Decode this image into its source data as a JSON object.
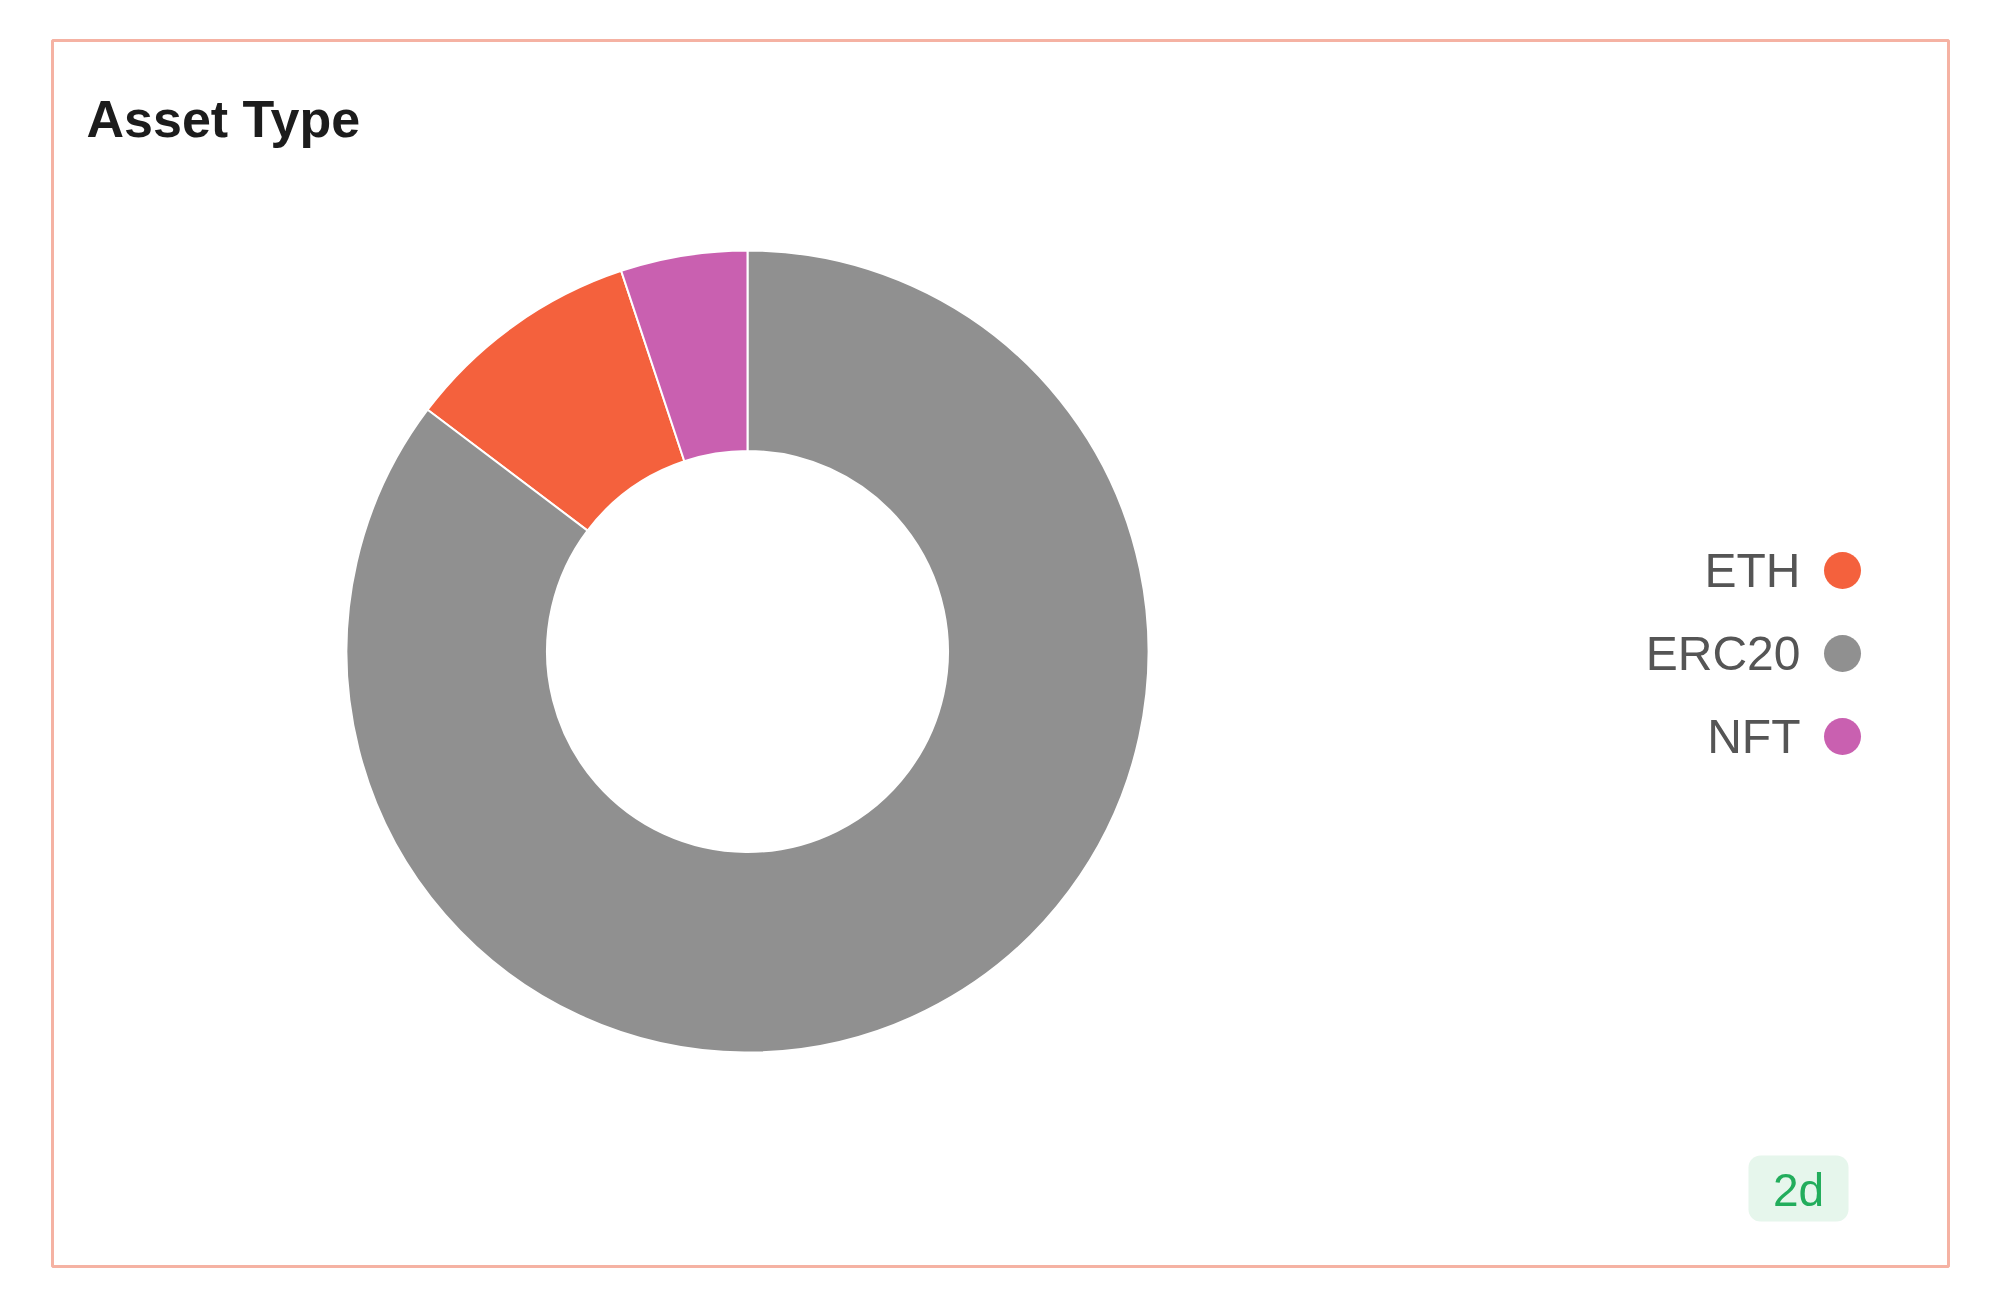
{
  "chart_data": {
    "type": "donut",
    "title": "Asset Type",
    "categories": [
      "ETH",
      "ERC20",
      "NFT"
    ],
    "values": [
      9.6,
      85.3,
      5.1
    ],
    "colors": [
      "#f4613d",
      "#909090",
      "#c960b0"
    ],
    "legend": "right",
    "annotations": [
      "2d"
    ]
  }
}
